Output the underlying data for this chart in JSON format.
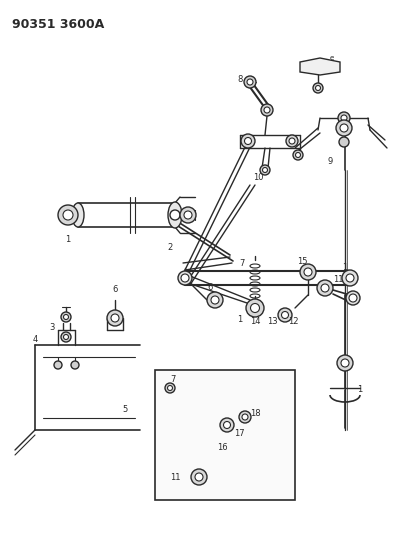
{
  "title": "90351 3600A",
  "bg_color": "#ffffff",
  "line_color": "#2a2a2a",
  "fig_w": 3.98,
  "fig_h": 5.33,
  "dpi": 100
}
